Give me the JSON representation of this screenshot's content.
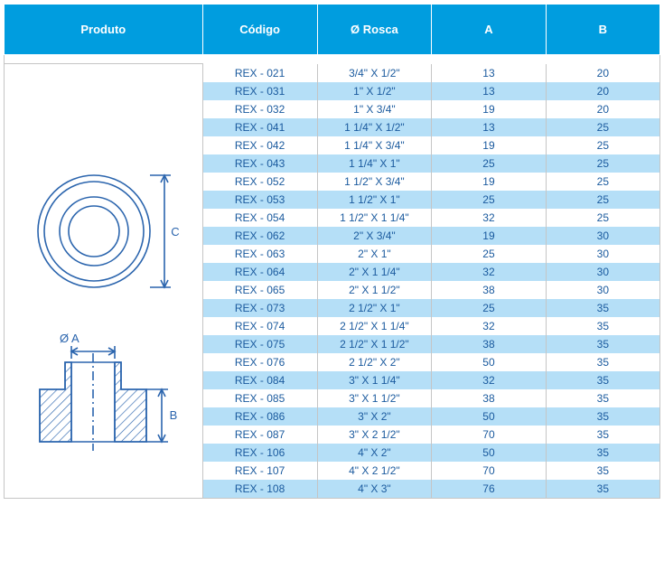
{
  "headers": {
    "produto": "Produto",
    "codigo": "Código",
    "rosca": "Ø Rosca",
    "a": "A",
    "b": "B"
  },
  "diagram": {
    "label_c": "C",
    "label_a": "Ø A",
    "label_b": "B",
    "stroke": "#2a64ad",
    "hatch": "#2a64ad"
  },
  "colors": {
    "header_bg": "#009ddf",
    "header_text": "#ffffff",
    "row_alt_bg": "#b5dff7",
    "row_bg": "#ffffff",
    "cell_text": "#1a5a9e",
    "border": "#c5c5c5"
  },
  "rows": [
    {
      "codigo": "REX - 021",
      "rosca": "3/4\" X 1/2\"",
      "a": "13",
      "b": "20"
    },
    {
      "codigo": "REX - 031",
      "rosca": "1\" X 1/2\"",
      "a": "13",
      "b": "20"
    },
    {
      "codigo": "REX - 032",
      "rosca": "1\" X 3/4\"",
      "a": "19",
      "b": "20"
    },
    {
      "codigo": "REX - 041",
      "rosca": "1 1/4\" X 1/2\"",
      "a": "13",
      "b": "25"
    },
    {
      "codigo": "REX - 042",
      "rosca": "1 1/4\" X 3/4\"",
      "a": "19",
      "b": "25"
    },
    {
      "codigo": "REX - 043",
      "rosca": "1 1/4\" X 1\"",
      "a": "25",
      "b": "25"
    },
    {
      "codigo": "REX - 052",
      "rosca": "1 1/2\" X 3/4\"",
      "a": "19",
      "b": "25"
    },
    {
      "codigo": "REX - 053",
      "rosca": "1 1/2\" X 1\"",
      "a": "25",
      "b": "25"
    },
    {
      "codigo": "REX - 054",
      "rosca": "1 1/2\" X 1 1/4\"",
      "a": "32",
      "b": "25"
    },
    {
      "codigo": "REX - 062",
      "rosca": "2\" X 3/4\"",
      "a": "19",
      "b": "30"
    },
    {
      "codigo": "REX - 063",
      "rosca": "2\" X 1\"",
      "a": "25",
      "b": "30"
    },
    {
      "codigo": "REX - 064",
      "rosca": "2\" X 1 1/4\"",
      "a": "32",
      "b": "30"
    },
    {
      "codigo": "REX - 065",
      "rosca": "2\" X 1 1/2\"",
      "a": "38",
      "b": "30"
    },
    {
      "codigo": "REX - 073",
      "rosca": "2 1/2\" X 1\"",
      "a": "25",
      "b": "35"
    },
    {
      "codigo": "REX - 074",
      "rosca": "2 1/2\" X 1 1/4\"",
      "a": "32",
      "b": "35"
    },
    {
      "codigo": "REX - 075",
      "rosca": "2 1/2\" X 1 1/2\"",
      "a": "38",
      "b": "35"
    },
    {
      "codigo": "REX - 076",
      "rosca": "2 1/2\" X 2\"",
      "a": "50",
      "b": "35"
    },
    {
      "codigo": "REX - 084",
      "rosca": "3\" X 1 1/4\"",
      "a": "32",
      "b": "35"
    },
    {
      "codigo": "REX - 085",
      "rosca": "3\" X 1 1/2\"",
      "a": "38",
      "b": "35"
    },
    {
      "codigo": "REX - 086",
      "rosca": "3\" X 2\"",
      "a": "50",
      "b": "35"
    },
    {
      "codigo": "REX - 087",
      "rosca": "3\" X 2 1/2\"",
      "a": "70",
      "b": "35"
    },
    {
      "codigo": "REX - 106",
      "rosca": "4\" X 2\"",
      "a": "50",
      "b": "35"
    },
    {
      "codigo": "REX - 107",
      "rosca": "4\" X 2 1/2\"",
      "a": "70",
      "b": "35"
    },
    {
      "codigo": "REX - 108",
      "rosca": "4\" X 3\"",
      "a": "76",
      "b": "35"
    }
  ]
}
